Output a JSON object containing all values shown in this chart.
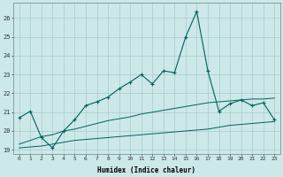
{
  "title": "",
  "xlabel": "Humidex (Indice chaleur)",
  "bg_color": "#cce8e8",
  "grid_color": "#aacccc",
  "line_color": "#006060",
  "xlim": [
    -0.5,
    23.5
  ],
  "ylim": [
    18.8,
    26.8
  ],
  "yticks": [
    19,
    20,
    21,
    22,
    23,
    24,
    25,
    26
  ],
  "xticks": [
    0,
    1,
    2,
    3,
    4,
    5,
    6,
    7,
    8,
    9,
    10,
    11,
    12,
    13,
    14,
    15,
    16,
    17,
    18,
    19,
    20,
    21,
    22,
    23
  ],
  "series1_x": [
    0,
    1,
    2,
    3,
    4,
    5,
    6,
    7,
    8,
    9,
    10,
    11,
    12,
    13,
    14,
    15,
    16,
    17,
    18,
    19,
    20,
    21,
    22,
    23
  ],
  "series1_y": [
    20.7,
    21.05,
    19.65,
    19.1,
    20.0,
    20.6,
    21.35,
    21.55,
    21.8,
    22.25,
    22.6,
    23.0,
    22.5,
    23.2,
    23.1,
    25.0,
    26.35,
    23.2,
    21.05,
    21.45,
    21.65,
    21.35,
    21.5,
    20.6
  ],
  "series2_x": [
    0,
    1,
    2,
    3,
    4,
    5,
    6,
    7,
    8,
    9,
    10,
    11,
    12,
    13,
    14,
    15,
    16,
    17,
    18,
    19,
    20,
    21,
    22,
    23
  ],
  "series2_y": [
    19.3,
    19.5,
    19.7,
    19.8,
    20.0,
    20.1,
    20.25,
    20.4,
    20.55,
    20.65,
    20.75,
    20.9,
    21.0,
    21.1,
    21.2,
    21.3,
    21.4,
    21.5,
    21.55,
    21.6,
    21.65,
    21.7,
    21.7,
    21.75
  ],
  "series3_x": [
    0,
    1,
    2,
    3,
    4,
    5,
    6,
    7,
    8,
    9,
    10,
    11,
    12,
    13,
    14,
    15,
    16,
    17,
    18,
    19,
    20,
    21,
    22,
    23
  ],
  "series3_y": [
    19.1,
    19.15,
    19.2,
    19.3,
    19.4,
    19.5,
    19.55,
    19.6,
    19.65,
    19.7,
    19.75,
    19.8,
    19.85,
    19.9,
    19.95,
    20.0,
    20.05,
    20.1,
    20.2,
    20.3,
    20.35,
    20.4,
    20.45,
    20.5
  ]
}
